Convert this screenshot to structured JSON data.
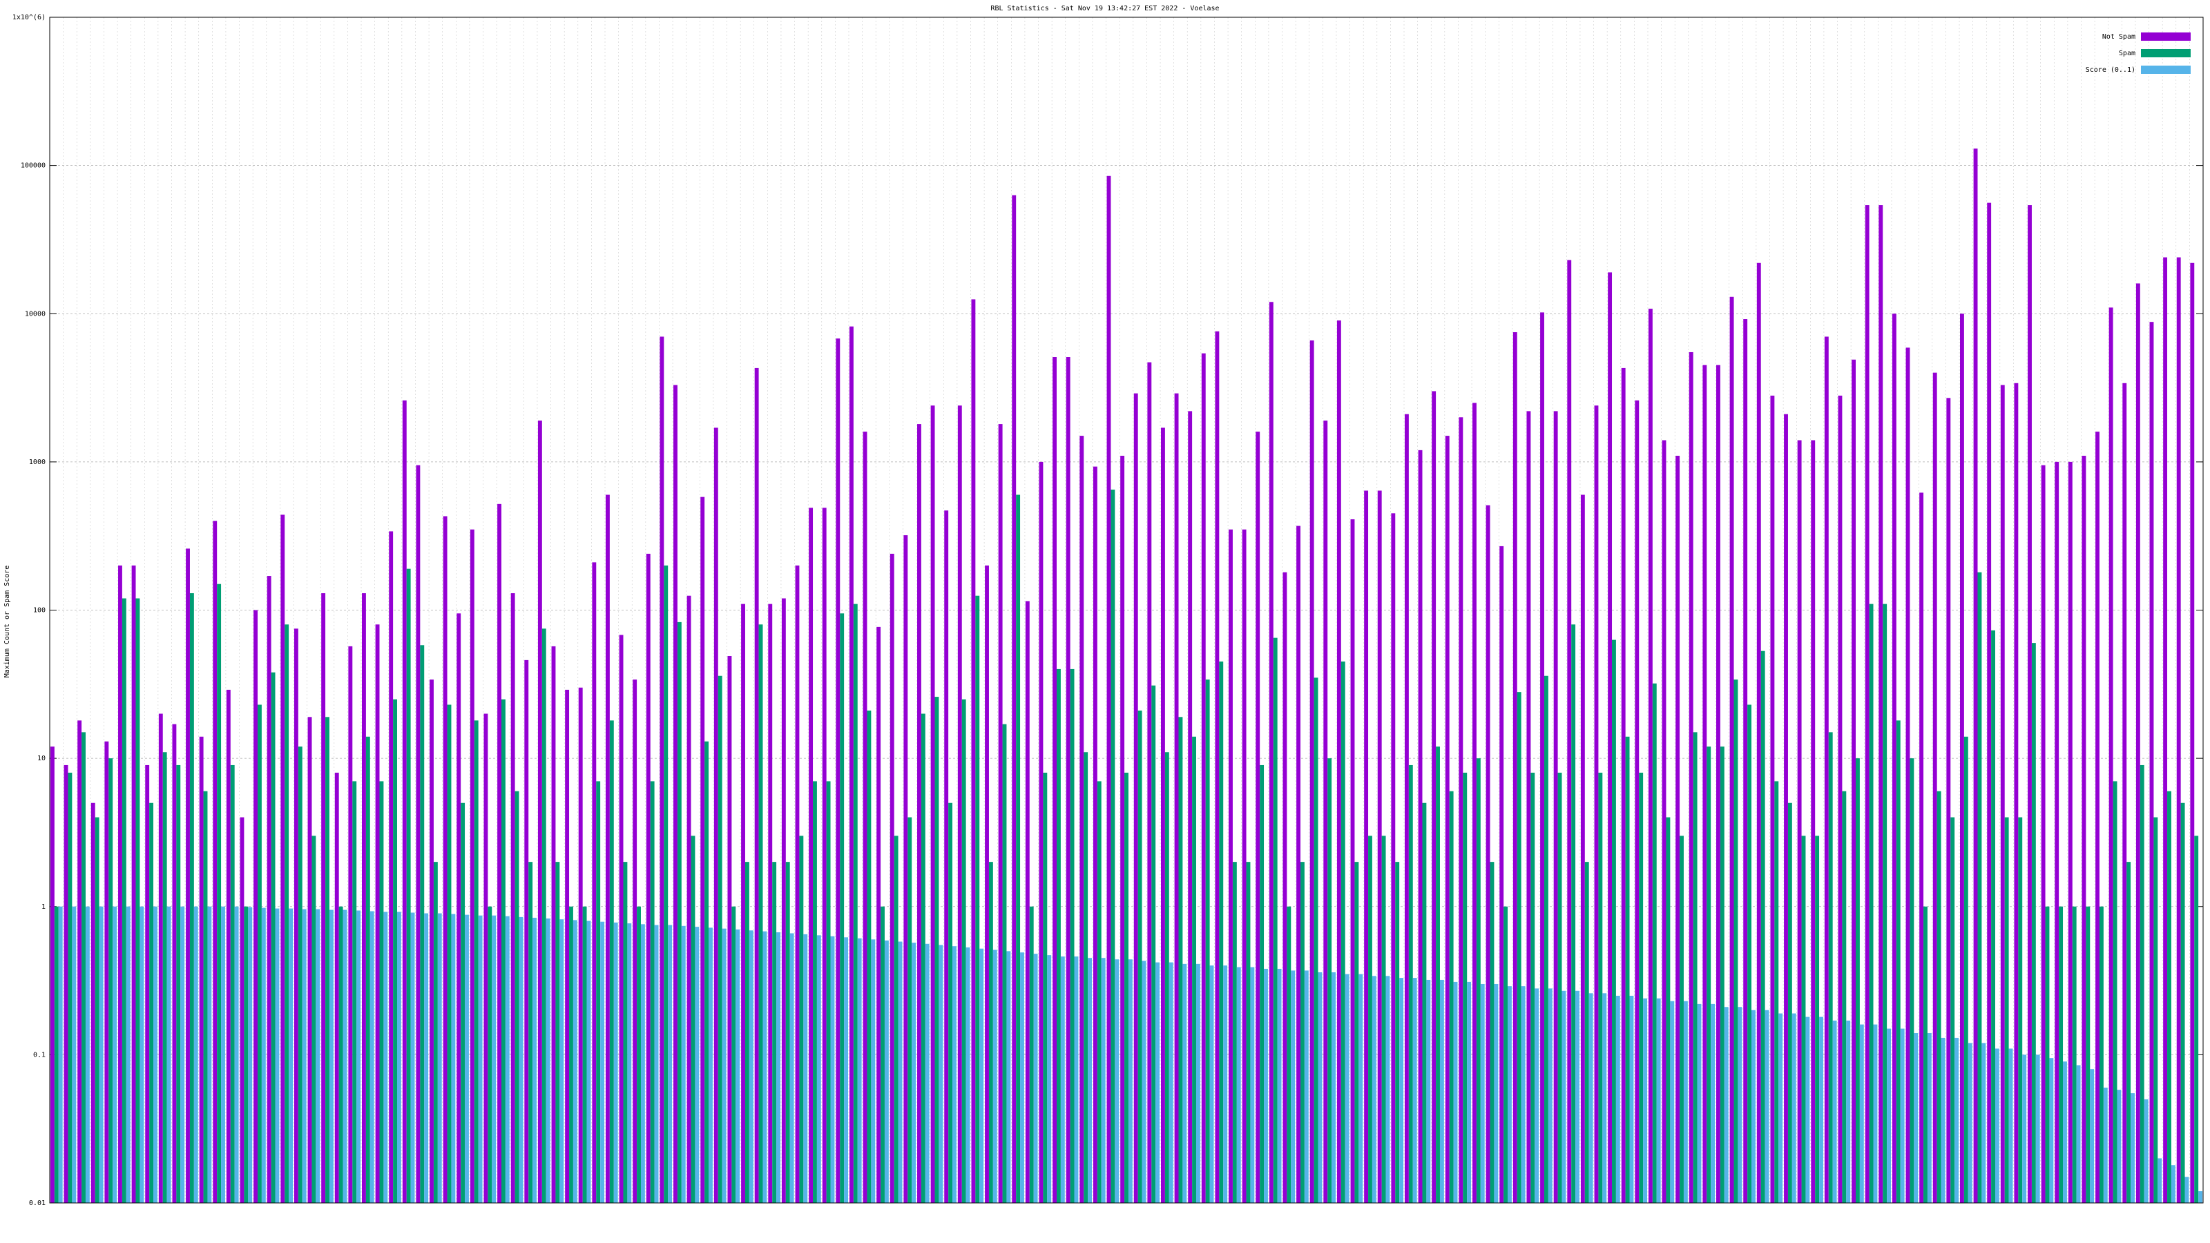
{
  "chart_data": {
    "type": "bar",
    "title": "RBL Statistics - Sat Nov 19 13:42:27 EST 2022 - Voelase",
    "y_label": "Maximum Count or Spam Score",
    "log_y": true,
    "grid": true,
    "legend": "top-right",
    "ylim": [
      0.01,
      1000000
    ],
    "yticks": [
      0.01,
      0.1,
      1,
      10,
      100,
      1000,
      10000,
      100000,
      {
        "value": 1000000,
        "label": "1x10^(6)"
      }
    ],
    "categories": [
      null,
      null,
      null,
      null,
      null,
      null,
      null,
      null,
      null,
      null,
      null,
      null,
      null,
      null,
      null,
      null,
      null,
      null,
      null,
      null,
      null,
      null,
      null,
      null,
      null,
      null,
      null,
      null,
      null,
      null,
      null,
      null,
      null,
      null,
      null,
      null,
      null,
      null,
      null,
      null,
      null,
      null,
      null,
      null,
      null,
      null,
      null,
      null,
      null,
      null,
      null,
      null,
      null,
      null,
      null,
      null,
      null,
      null,
      null,
      null,
      null,
      null,
      null,
      null,
      null,
      null,
      null,
      null,
      null,
      null,
      null,
      null,
      null,
      null,
      null,
      null,
      null,
      null,
      null,
      null,
      null,
      null,
      null,
      null,
      null,
      null,
      null,
      null,
      null,
      null,
      null,
      null,
      null,
      null,
      null,
      null,
      null,
      null,
      null,
      null,
      null,
      null,
      null,
      null,
      null,
      null,
      null,
      null,
      null,
      null,
      null,
      null,
      null,
      null,
      null,
      null,
      null,
      null,
      null,
      null,
      null,
      null,
      null,
      null,
      null,
      null,
      null,
      null,
      null,
      null,
      null,
      null,
      null,
      null,
      null,
      null,
      null,
      null,
      null,
      null,
      null,
      null,
      null,
      null,
      null,
      null,
      null,
      null,
      null,
      null,
      null,
      null,
      null,
      null,
      null,
      null,
      null,
      null,
      null
    ],
    "series": [
      {
        "name": "Not Spam",
        "color": "#9400d3",
        "values": [
          12,
          9,
          18,
          5,
          13,
          200,
          200,
          9,
          20,
          17,
          260,
          14,
          400,
          29,
          4,
          100,
          170,
          440,
          75,
          19,
          130,
          8,
          57,
          130,
          80,
          340,
          2600,
          950,
          34,
          430,
          95,
          350,
          20,
          520,
          130,
          46,
          1900,
          57,
          29,
          30,
          210,
          600,
          68,
          34,
          240,
          7000,
          3300,
          125,
          580,
          1700,
          49,
          110,
          4300,
          110,
          120,
          200,
          490,
          490,
          6800,
          8200,
          1600,
          77,
          240,
          320,
          1800,
          2400,
          470,
          2400,
          12500,
          200,
          1800,
          63000,
          115,
          1000,
          5100,
          5100,
          1500,
          930,
          85000,
          1100,
          2900,
          4700,
          1700,
          2900,
          2200,
          5400,
          7600,
          350,
          350,
          1600,
          12000,
          180,
          370,
          6600,
          1900,
          9000,
          410,
          640,
          640,
          450,
          2100,
          1200,
          3000,
          1500,
          2000,
          2500,
          510,
          270,
          7500,
          2200,
          10200,
          2200,
          23000,
          600,
          2400,
          19000,
          4300,
          2600,
          10800,
          1400,
          1100,
          5500,
          4500,
          4500,
          13000,
          9200,
          22000,
          2800,
          2100,
          1400,
          1400,
          7000,
          2800,
          4900,
          54000,
          54000,
          10000,
          5900,
          620,
          4000,
          2700,
          10000,
          130000,
          56000,
          3300,
          3400,
          54000,
          950,
          1000,
          1000,
          1100,
          1600,
          11000,
          3400,
          16000,
          8800,
          24000,
          24000,
          22000
        ]
      },
      {
        "name": "Spam",
        "color": "#009e73",
        "values": [
          1,
          8,
          15,
          4,
          10,
          120,
          120,
          5,
          11,
          9,
          130,
          6,
          150,
          9,
          1,
          23,
          38,
          80,
          12,
          3,
          19,
          1,
          7,
          14,
          7,
          25,
          190,
          58,
          2,
          23,
          5,
          18,
          1,
          25,
          6,
          2,
          75,
          2,
          1,
          1,
          7,
          18,
          2,
          1,
          7,
          200,
          83,
          3,
          13,
          36,
          1,
          2,
          80,
          2,
          2,
          3,
          7,
          7,
          95,
          110,
          21,
          1,
          3,
          4,
          20,
          26,
          5,
          25,
          125,
          2,
          17,
          600,
          1,
          8,
          40,
          40,
          11,
          7,
          650,
          8,
          21,
          31,
          11,
          19,
          14,
          34,
          45,
          2,
          2,
          9,
          65,
          1,
          2,
          35,
          10,
          45,
          2,
          3,
          3,
          2,
          9,
          5,
          12,
          6,
          8,
          10,
          2,
          1,
          28,
          8,
          36,
          8,
          80,
          2,
          8,
          63,
          14,
          8,
          32,
          4,
          3,
          15,
          12,
          12,
          34,
          23,
          53,
          7,
          5,
          3,
          3,
          15,
          6,
          10,
          110,
          110,
          18,
          10,
          1,
          6,
          4,
          14,
          180,
          73,
          4,
          4,
          60,
          1,
          1,
          1,
          1,
          1,
          7,
          2,
          9,
          4,
          6,
          5,
          3
        ]
      },
      {
        "name": "Score (0..1)",
        "color": "#56b4e9",
        "values": [
          1,
          1,
          1,
          1,
          1,
          1,
          1,
          1,
          1,
          1,
          1,
          1,
          1,
          1,
          0.99,
          0.98,
          0.97,
          0.97,
          0.96,
          0.96,
          0.95,
          0.95,
          0.94,
          0.93,
          0.92,
          0.92,
          0.91,
          0.9,
          0.9,
          0.89,
          0.88,
          0.87,
          0.87,
          0.86,
          0.85,
          0.84,
          0.83,
          0.82,
          0.81,
          0.8,
          0.79,
          0.78,
          0.77,
          0.76,
          0.75,
          0.75,
          0.74,
          0.73,
          0.72,
          0.71,
          0.7,
          0.69,
          0.68,
          0.67,
          0.66,
          0.65,
          0.64,
          0.63,
          0.62,
          0.61,
          0.6,
          0.59,
          0.58,
          0.57,
          0.56,
          0.55,
          0.54,
          0.53,
          0.52,
          0.51,
          0.5,
          0.49,
          0.48,
          0.47,
          0.46,
          0.46,
          0.45,
          0.45,
          0.44,
          0.44,
          0.43,
          0.42,
          0.42,
          0.41,
          0.41,
          0.4,
          0.4,
          0.39,
          0.39,
          0.38,
          0.38,
          0.37,
          0.37,
          0.36,
          0.36,
          0.35,
          0.35,
          0.34,
          0.34,
          0.33,
          0.33,
          0.32,
          0.32,
          0.31,
          0.31,
          0.3,
          0.3,
          0.29,
          0.29,
          0.28,
          0.28,
          0.27,
          0.27,
          0.26,
          0.26,
          0.25,
          0.25,
          0.24,
          0.24,
          0.23,
          0.23,
          0.22,
          0.22,
          0.21,
          0.21,
          0.2,
          0.2,
          0.19,
          0.19,
          0.18,
          0.18,
          0.17,
          0.17,
          0.16,
          0.16,
          0.15,
          0.15,
          0.14,
          0.14,
          0.13,
          0.13,
          0.12,
          0.12,
          0.11,
          0.11,
          0.1,
          0.1,
          0.095,
          0.09,
          0.085,
          0.08,
          0.06,
          0.058,
          0.055,
          0.05,
          0.02,
          0.018,
          0.015,
          0.012
        ]
      }
    ]
  }
}
